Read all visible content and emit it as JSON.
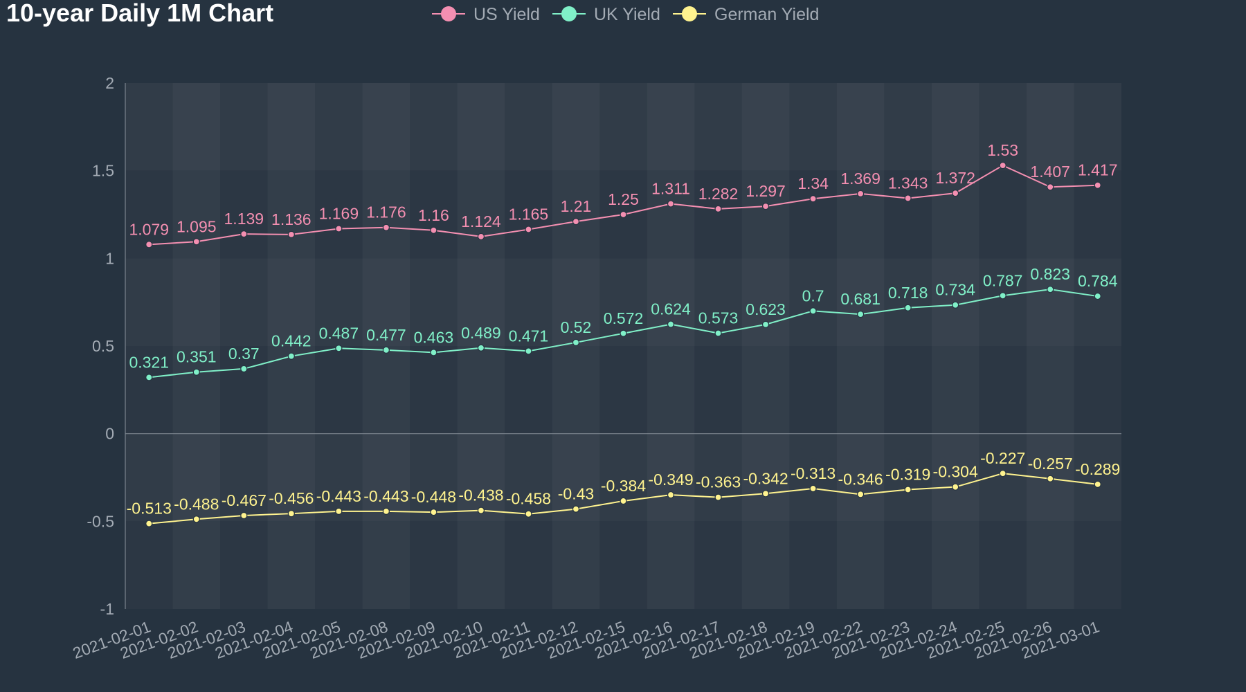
{
  "chart_data": {
    "type": "line",
    "title": "10-year Daily 1M Chart",
    "xlabel": "",
    "ylabel": "",
    "ylim": [
      -1,
      2
    ],
    "yticks": [
      2,
      1.5,
      1,
      0.5,
      0,
      -0.5,
      -1
    ],
    "grid": true,
    "legend_position": "top-center",
    "categories": [
      "2021-02-01",
      "2021-02-02",
      "2021-02-03",
      "2021-02-04",
      "2021-02-05",
      "2021-02-08",
      "2021-02-09",
      "2021-02-10",
      "2021-02-11",
      "2021-02-12",
      "2021-02-15",
      "2021-02-16",
      "2021-02-17",
      "2021-02-18",
      "2021-02-19",
      "2021-02-22",
      "2021-02-23",
      "2021-02-24",
      "2021-02-25",
      "2021-02-26",
      "2021-03-01"
    ],
    "series": [
      {
        "name": "US Yield",
        "color": "#f48fb1",
        "values": [
          1.079,
          1.095,
          1.139,
          1.136,
          1.169,
          1.176,
          1.16,
          1.124,
          1.165,
          1.21,
          1.25,
          1.311,
          1.282,
          1.297,
          1.34,
          1.369,
          1.343,
          1.372,
          1.53,
          1.407,
          1.417
        ]
      },
      {
        "name": "UK Yield",
        "color": "#80f0c8",
        "values": [
          0.321,
          0.351,
          0.37,
          0.442,
          0.487,
          0.477,
          0.463,
          0.489,
          0.471,
          0.52,
          0.572,
          0.624,
          0.573,
          0.623,
          0.7,
          0.681,
          0.718,
          0.734,
          0.787,
          0.823,
          0.784
        ]
      },
      {
        "name": "German Yield",
        "color": "#fff38f",
        "values": [
          -0.513,
          -0.488,
          -0.467,
          -0.456,
          -0.443,
          -0.443,
          -0.448,
          -0.438,
          -0.458,
          -0.43,
          -0.384,
          -0.349,
          -0.363,
          -0.342,
          -0.313,
          -0.346,
          -0.319,
          -0.304,
          -0.227,
          -0.257,
          -0.289
        ]
      }
    ]
  }
}
